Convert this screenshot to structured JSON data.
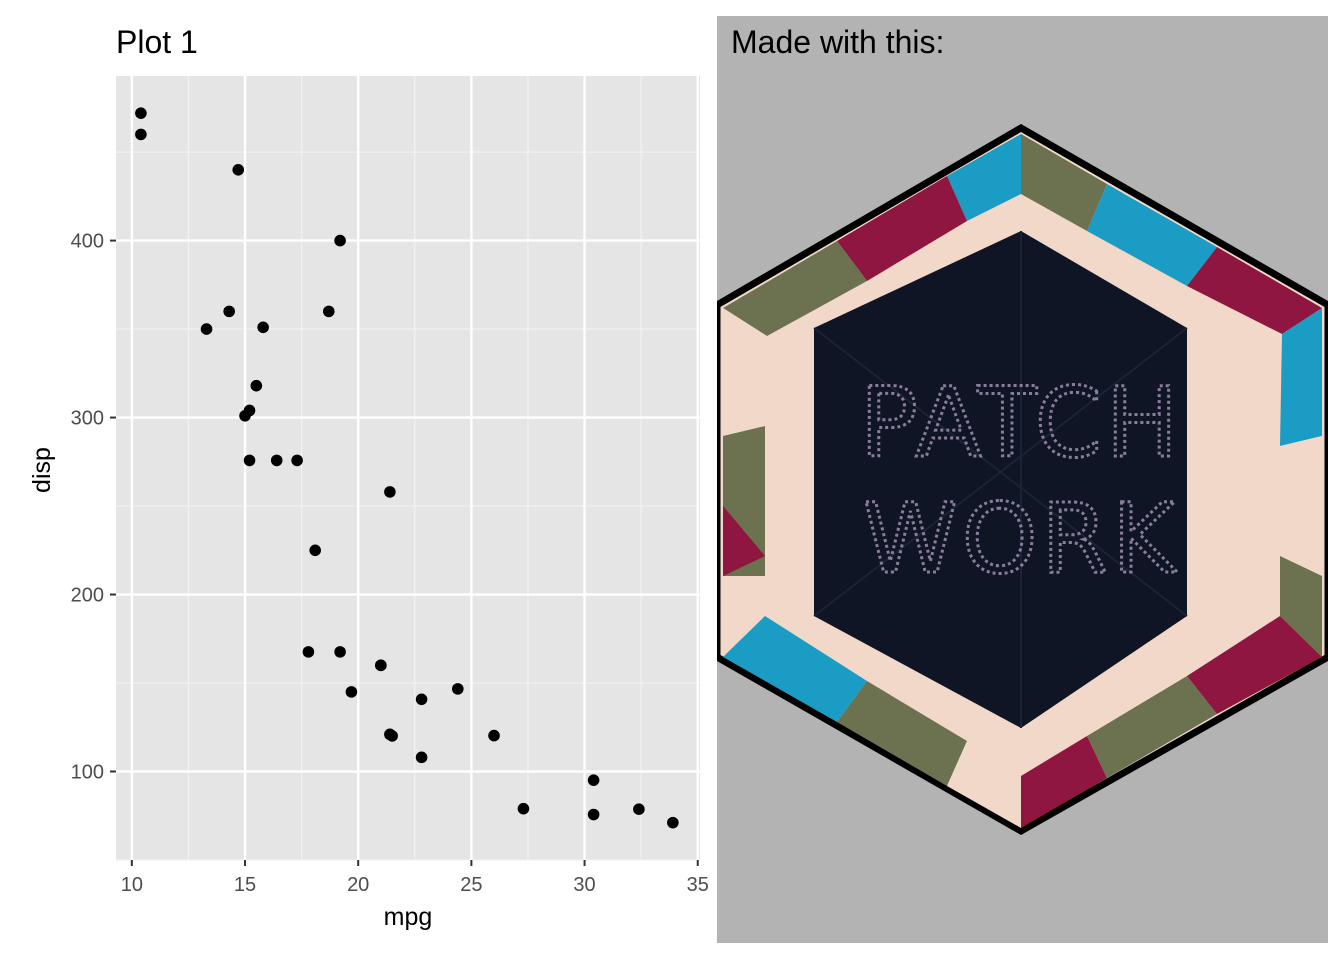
{
  "plot_title": "Plot 1",
  "image_panel": {
    "title": "Made with this:",
    "background_color": "#b3b3b3",
    "quilt_text": [
      "PATCH",
      "WORK"
    ],
    "quilt_colors": [
      "#0f1524",
      "#1a9cc4",
      "#8e1640",
      "#f2d8c8",
      "#6c7150",
      "#000000"
    ]
  },
  "chart_data": {
    "type": "scatter",
    "title": "Plot 1",
    "xlabel": "mpg",
    "ylabel": "disp",
    "xlim": [
      9.3,
      35.1
    ],
    "ylim": [
      50,
      493
    ],
    "xticks": [
      10,
      15,
      20,
      25,
      30,
      35
    ],
    "yticks": [
      100,
      200,
      300,
      400
    ],
    "grid": true,
    "background": "#e5e5e5",
    "point_color": "#000000",
    "x": [
      21,
      21,
      22.8,
      21.4,
      18.7,
      18.1,
      14.3,
      24.4,
      22.8,
      19.2,
      17.8,
      16.4,
      17.3,
      15.2,
      10.4,
      10.4,
      14.7,
      32.4,
      30.4,
      33.9,
      21.5,
      15.5,
      15.2,
      13.3,
      19.2,
      27.3,
      26,
      30.4,
      15.8,
      19.7,
      15,
      21.4
    ],
    "y": [
      160,
      160,
      108,
      258,
      360,
      225,
      360,
      146.7,
      140.8,
      167.6,
      167.6,
      275.8,
      275.8,
      275.8,
      472,
      460,
      440,
      78.7,
      75.7,
      71.1,
      120.1,
      318,
      304,
      350,
      400,
      79,
      120.3,
      95.1,
      351,
      145,
      301,
      121
    ]
  }
}
